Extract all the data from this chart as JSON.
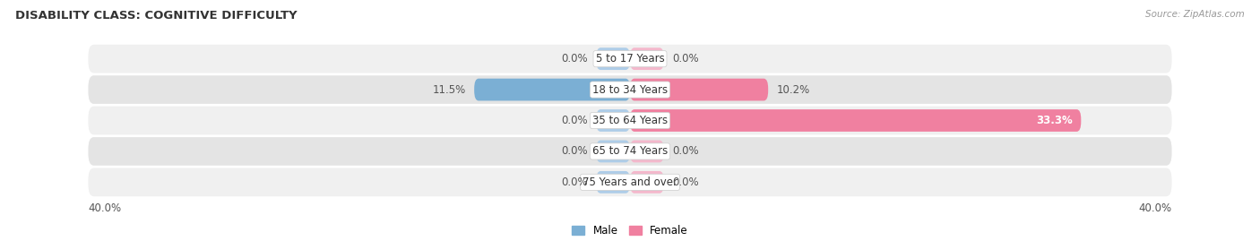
{
  "title": "DISABILITY CLASS: COGNITIVE DIFFICULTY",
  "source": "Source: ZipAtlas.com",
  "categories": [
    "5 to 17 Years",
    "18 to 34 Years",
    "35 to 64 Years",
    "65 to 74 Years",
    "75 Years and over"
  ],
  "male_values": [
    0.0,
    11.5,
    0.0,
    0.0,
    0.0
  ],
  "female_values": [
    0.0,
    10.2,
    33.3,
    0.0,
    0.0
  ],
  "male_color": "#7bafd4",
  "female_color": "#f080a0",
  "male_color_light": "#aecde8",
  "female_color_light": "#f4b8cc",
  "row_bg_color_light": "#f0f0f0",
  "row_bg_color_dark": "#e4e4e4",
  "axis_max": 40.0,
  "stub_val": 2.5,
  "label_fontsize": 8.5,
  "title_fontsize": 9.5,
  "background_color": "#ffffff",
  "male_label": "Male",
  "female_label": "Female",
  "value_label_color": "#555555",
  "inside_label_color": "#ffffff"
}
